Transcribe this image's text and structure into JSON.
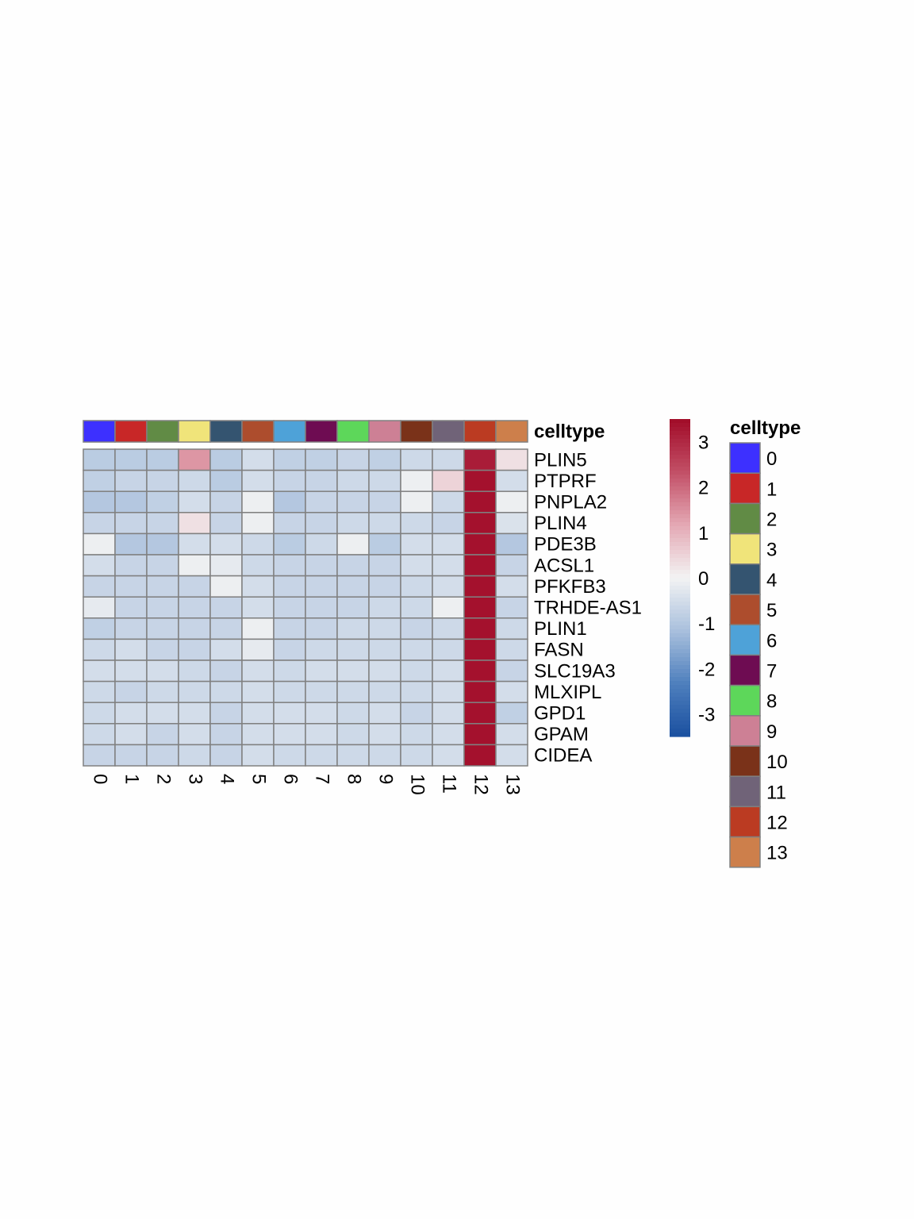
{
  "chart_data": {
    "type": "heatmap",
    "annotation_title": "celltype",
    "legend_title": "celltype",
    "columns": [
      "0",
      "1",
      "2",
      "3",
      "4",
      "5",
      "6",
      "7",
      "8",
      "9",
      "10",
      "11",
      "12",
      "13"
    ],
    "rows": [
      "PLIN5",
      "PTPRF",
      "PNPLA2",
      "PLIN4",
      "PDE3B",
      "ACSL1",
      "PFKFB3",
      "TRHDE-AS1",
      "PLIN1",
      "FASN",
      "SLC19A3",
      "MLXIPL",
      "GPD1",
      "GPAM",
      "CIDEA"
    ],
    "values": [
      [
        -0.9,
        -0.9,
        -0.9,
        1.4,
        -0.9,
        -0.5,
        -0.8,
        -0.8,
        -0.7,
        -0.8,
        -0.6,
        -0.6,
        3.2,
        0.3
      ],
      [
        -0.8,
        -0.7,
        -0.7,
        -0.6,
        -0.9,
        -0.5,
        -0.7,
        -0.7,
        -0.6,
        -0.6,
        -0.1,
        0.5,
        3.4,
        -0.5
      ],
      [
        -1.0,
        -1.0,
        -0.8,
        -0.5,
        -0.7,
        -0.1,
        -1.0,
        -0.7,
        -0.7,
        -0.7,
        -0.1,
        -0.6,
        3.4,
        -0.1
      ],
      [
        -0.7,
        -0.7,
        -0.7,
        0.3,
        -0.7,
        -0.1,
        -0.7,
        -0.7,
        -0.6,
        -0.6,
        -0.6,
        -0.7,
        3.4,
        -0.4
      ],
      [
        -0.1,
        -1.0,
        -1.0,
        -0.5,
        -0.5,
        -0.6,
        -0.9,
        -0.6,
        -0.1,
        -0.9,
        -0.5,
        -0.5,
        3.4,
        -1.0
      ],
      [
        -0.5,
        -0.7,
        -0.7,
        -0.1,
        -0.2,
        -0.6,
        -0.7,
        -0.7,
        -0.7,
        -0.7,
        -0.5,
        -0.5,
        3.4,
        -0.7
      ],
      [
        -0.7,
        -0.7,
        -0.7,
        -0.7,
        -0.1,
        -0.5,
        -0.7,
        -0.7,
        -0.7,
        -0.7,
        -0.6,
        -0.5,
        3.4,
        -0.5
      ],
      [
        -0.2,
        -0.7,
        -0.7,
        -0.7,
        -0.7,
        -0.5,
        -0.7,
        -0.7,
        -0.7,
        -0.6,
        -0.6,
        -0.1,
        3.4,
        -0.7
      ],
      [
        -0.8,
        -0.7,
        -0.7,
        -0.7,
        -0.7,
        -0.1,
        -0.7,
        -0.7,
        -0.6,
        -0.6,
        -0.7,
        -0.6,
        3.4,
        -0.6
      ],
      [
        -0.6,
        -0.5,
        -0.7,
        -0.7,
        -0.5,
        -0.2,
        -0.7,
        -0.6,
        -0.6,
        -0.6,
        -0.6,
        -0.6,
        3.4,
        -0.6
      ],
      [
        -0.5,
        -0.5,
        -0.5,
        -0.6,
        -0.7,
        -0.5,
        -0.6,
        -0.5,
        -0.5,
        -0.5,
        -0.6,
        -0.5,
        3.4,
        -0.7
      ],
      [
        -0.6,
        -0.7,
        -0.6,
        -0.6,
        -0.6,
        -0.5,
        -0.6,
        -0.6,
        -0.6,
        -0.6,
        -0.6,
        -0.5,
        3.4,
        -0.5
      ],
      [
        -0.6,
        -0.5,
        -0.5,
        -0.5,
        -0.7,
        -0.5,
        -0.5,
        -0.5,
        -0.6,
        -0.5,
        -0.7,
        -0.5,
        3.4,
        -0.8
      ],
      [
        -0.6,
        -0.5,
        -0.7,
        -0.5,
        -0.7,
        -0.5,
        -0.5,
        -0.5,
        -0.6,
        -0.5,
        -0.6,
        -0.5,
        3.4,
        -0.5
      ],
      [
        -0.7,
        -0.7,
        -0.7,
        -0.6,
        -0.7,
        -0.5,
        -0.6,
        -0.6,
        -0.6,
        -0.6,
        -0.6,
        -0.5,
        3.4,
        -0.5
      ]
    ],
    "color_scale": {
      "min": -3.5,
      "max": 3.5,
      "ticks": [
        -3,
        -2,
        -1,
        0,
        1,
        2,
        3
      ],
      "colors": [
        "#1a50a0",
        "#4e7fbd",
        "#a9c0dd",
        "#f3f3f3",
        "#e4a8b4",
        "#c24f66",
        "#a10b28"
      ]
    },
    "celltype_colors": [
      "#3d30ff",
      "#c82727",
      "#618b45",
      "#f0e47a",
      "#345470",
      "#ad4d2d",
      "#4ea2d8",
      "#6e0c52",
      "#5dd75a",
      "#cd8095",
      "#7a3219",
      "#706378",
      "#bb3b22",
      "#cd7f4b"
    ],
    "border_color": "#808080"
  }
}
